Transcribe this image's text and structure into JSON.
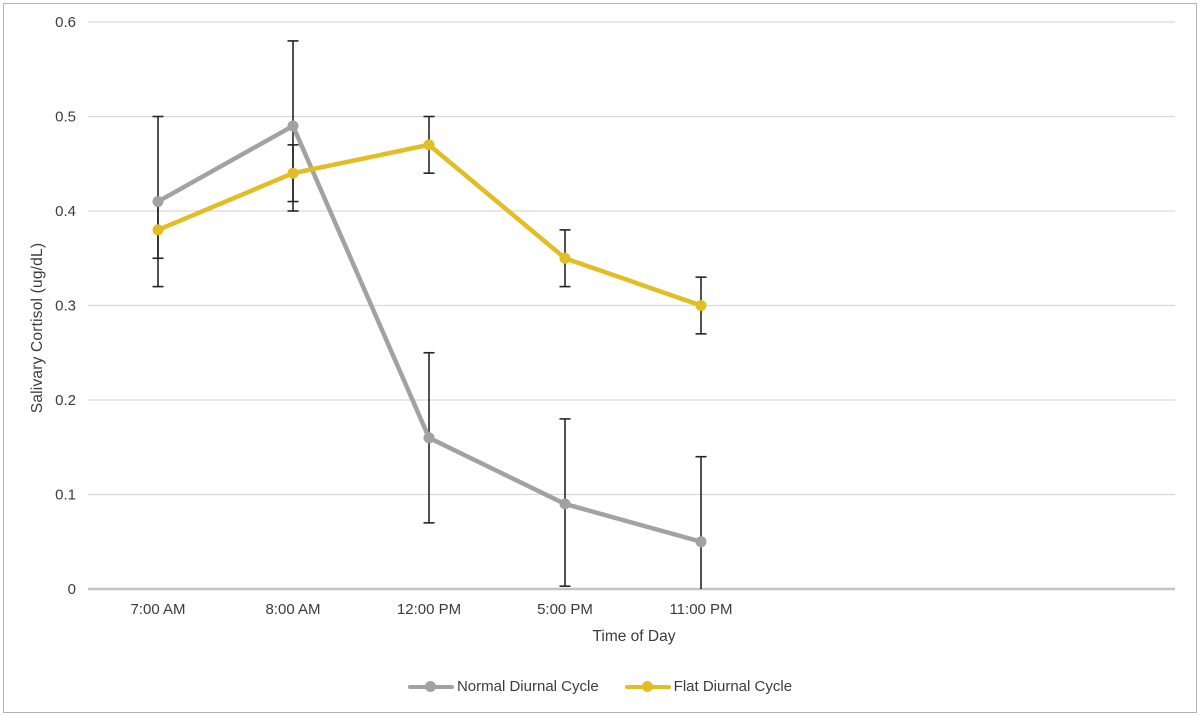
{
  "chart_data": {
    "type": "line",
    "title": "",
    "xlabel": "Time of Day",
    "ylabel": "Salivary Cortisol (ug/dL)",
    "categories": [
      "7:00 AM",
      "8:00 AM",
      "12:00 PM",
      "5:00 PM",
      "11:00 PM"
    ],
    "ylim": [
      0,
      0.6
    ],
    "y_ticks": [
      {
        "value": 0.6,
        "label": "0.6"
      },
      {
        "value": 0.5,
        "label": "0.5"
      },
      {
        "value": 0.4,
        "label": "0.4"
      },
      {
        "value": 0.3,
        "label": "0.3"
      },
      {
        "value": 0.2,
        "label": "0.2"
      },
      {
        "value": 0.1,
        "label": "0.1"
      },
      {
        "value": 0.0,
        "label": "0"
      }
    ],
    "grid": "horizontal",
    "legend_position": "bottom-center",
    "error_bar_color": "#262626",
    "series": [
      {
        "name": "Normal Diurnal Cycle",
        "color": "#a2a2a2",
        "marker": "circle",
        "values": [
          0.41,
          0.49,
          0.16,
          0.09,
          0.05
        ],
        "error_plus_minus": 0.09,
        "error_bars": [
          {
            "lo": 0.32,
            "hi": 0.5,
            "cap_lo": true,
            "cap_hi": true
          },
          {
            "lo": 0.4,
            "hi": 0.58,
            "cap_lo": true,
            "cap_hi": true
          },
          {
            "lo": 0.07,
            "hi": 0.25,
            "cap_lo": true,
            "cap_hi": true
          },
          {
            "lo": 0.003,
            "hi": 0.18,
            "cap_lo": true,
            "cap_hi": true
          },
          {
            "lo": 0.0,
            "hi": 0.14,
            "cap_lo": false,
            "cap_hi": true
          }
        ]
      },
      {
        "name": "Flat Diurnal Cycle",
        "color": "#e2bd23",
        "marker": "circle",
        "values": [
          0.38,
          0.44,
          0.47,
          0.35,
          0.3
        ],
        "error_plus_minus": 0.03,
        "error_bars": [
          {
            "lo": 0.35,
            "hi": 0.41,
            "cap_lo": true,
            "cap_hi": true
          },
          {
            "lo": 0.41,
            "hi": 0.47,
            "cap_lo": true,
            "cap_hi": true
          },
          {
            "lo": 0.44,
            "hi": 0.5,
            "cap_lo": true,
            "cap_hi": true
          },
          {
            "lo": 0.32,
            "hi": 0.38,
            "cap_lo": true,
            "cap_hi": true
          },
          {
            "lo": 0.27,
            "hi": 0.33,
            "cap_lo": true,
            "cap_hi": true
          }
        ]
      }
    ]
  }
}
